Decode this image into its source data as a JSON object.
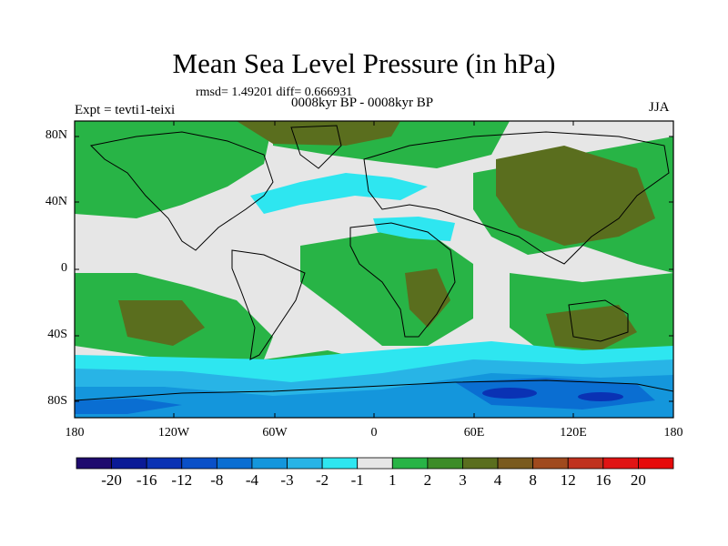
{
  "title": "Mean Sea Level Pressure (in hPa)",
  "stats": "rmsd= 1.49201 diff= 0.666931",
  "subtitle": "0008kyr BP - 0008kyr BP",
  "left_label": "Expt = tevti1-teixi",
  "season": "JJA",
  "lat_labels": [
    "80N",
    "40N",
    "0",
    "40S",
    "80S"
  ],
  "lon_labels": [
    "180",
    "120W",
    "60W",
    "0",
    "60E",
    "120E",
    "180"
  ],
  "colorbar": {
    "labels": [
      "-20",
      "-16",
      "-12",
      "-8",
      "-4",
      "-3",
      "-2",
      "-1",
      "1",
      "2",
      "3",
      "4",
      "8",
      "12",
      "16",
      "20"
    ],
    "colors": [
      "#1e0a6e",
      "#0a1a96",
      "#0a32b4",
      "#0a50c8",
      "#0a6ed2",
      "#1496dc",
      "#28b4e6",
      "#2ee6f0",
      "#e6e6e6",
      "#28b446",
      "#3c8c28",
      "#5a6e1e",
      "#7a5a1e",
      "#a04a1e",
      "#c0321e",
      "#e01414",
      "#e60a0a"
    ]
  },
  "colors": {
    "land_outline": "#000000",
    "background_field": "#e6e6e6"
  }
}
